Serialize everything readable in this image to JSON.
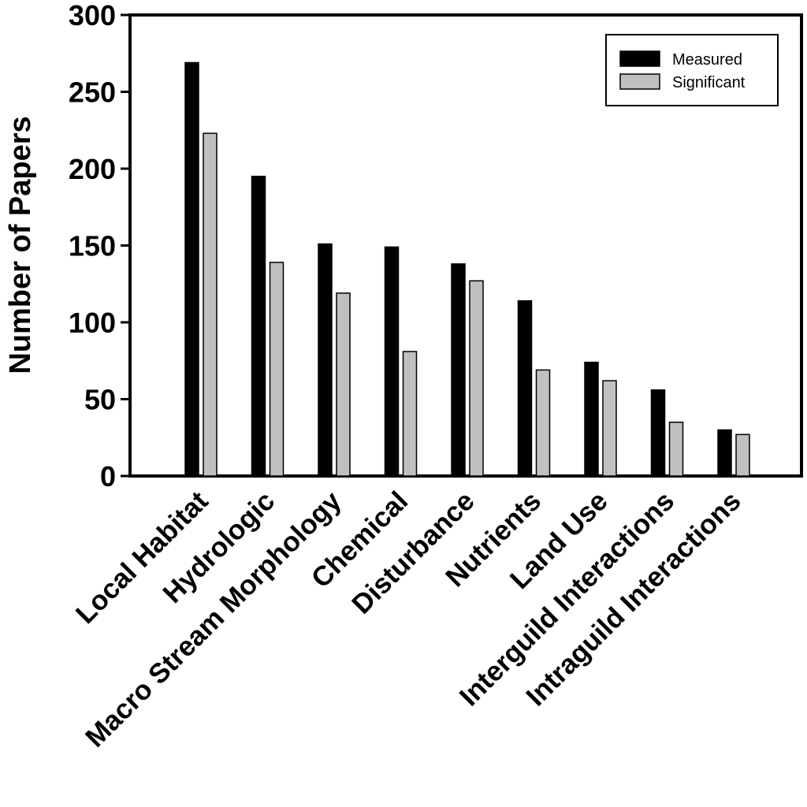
{
  "chart_data": {
    "type": "bar",
    "title": "",
    "xlabel": "",
    "ylabel": "Number of Papers",
    "ylim": [
      0,
      300
    ],
    "yticks": [
      "0",
      "50",
      "100",
      "150",
      "200",
      "250",
      "300"
    ],
    "categories": [
      "Local Habitat",
      "Hydrologic",
      "Macro Stream Morphology",
      "Chemical",
      "Disturbance",
      "Nutrients",
      "Land Use",
      "Interguild Interactions",
      "Intraguild Interactions"
    ],
    "series": [
      {
        "name": "Measured",
        "values": [
          269,
          195,
          151,
          149,
          138,
          114,
          74,
          56,
          30
        ]
      },
      {
        "name": "Significant",
        "values": [
          223,
          139,
          119,
          81,
          127,
          69,
          62,
          35,
          27
        ]
      }
    ],
    "grid": false,
    "legend_position": "top-right",
    "colors": {
      "Measured": "#000000",
      "Significant": "#c0c0c0"
    }
  }
}
